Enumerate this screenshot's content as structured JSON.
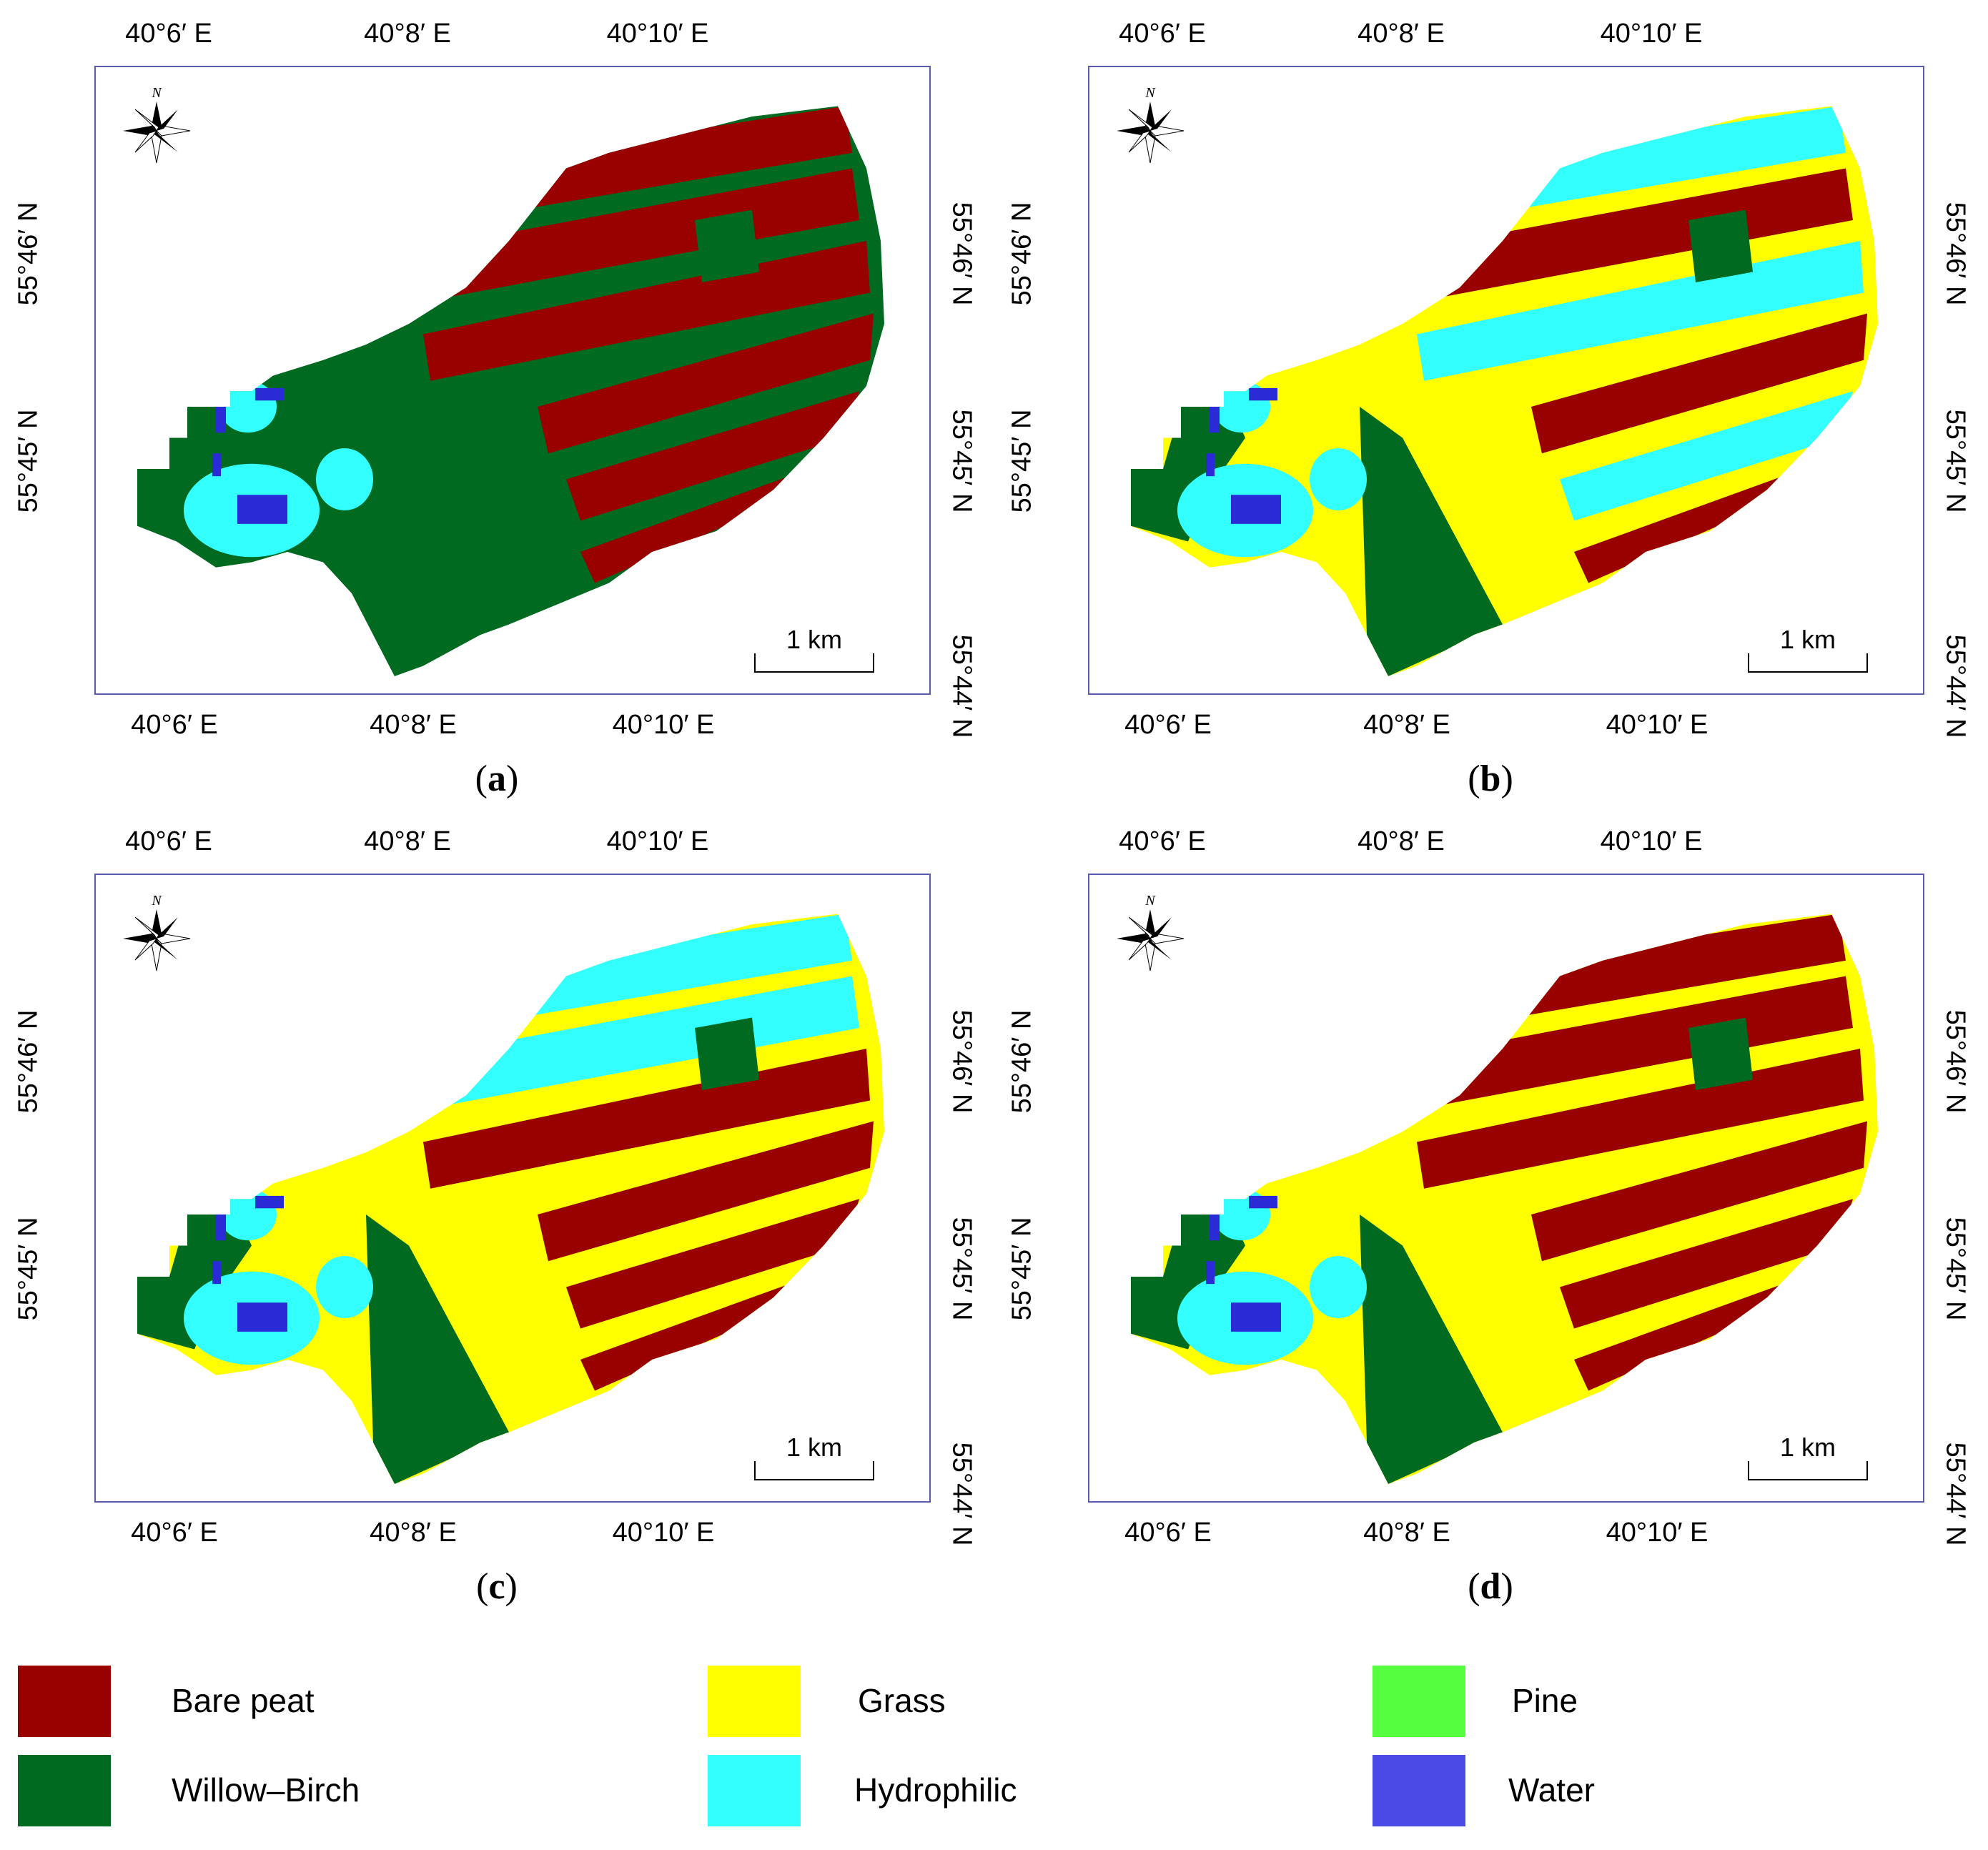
{
  "panels": [
    {
      "id": "a",
      "label": "a"
    },
    {
      "id": "b",
      "label": "b"
    },
    {
      "id": "c",
      "label": "c"
    },
    {
      "id": "d",
      "label": "d"
    }
  ],
  "axes": {
    "longitude_ticks": [
      "40°6′ E",
      "40°8′ E",
      "40°10′ E"
    ],
    "latitude_ticks_left": [
      "55°46′ N",
      "55°45′ N"
    ],
    "latitude_ticks_right": [
      "55°46′ N",
      "55°45′ N",
      "55°44′ N"
    ]
  },
  "north_arrow": {
    "letter": "N",
    "icon": "compass-rose-icon"
  },
  "scalebar": {
    "label": "1 km"
  },
  "legend": [
    {
      "name": "Bare peat",
      "color": "#990000"
    },
    {
      "name": "Grass",
      "color": "#ffff00"
    },
    {
      "name": "Pine",
      "color": "#55ff3f"
    },
    {
      "name": "Willow–Birch",
      "color": "#006a20"
    },
    {
      "name": "Hydrophilic",
      "color": "#33ffff"
    },
    {
      "name": "Water",
      "color": "#4a4ae6"
    }
  ]
}
